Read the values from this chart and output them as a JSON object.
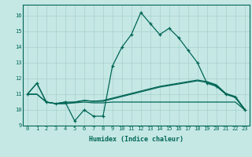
{
  "xlabel": "Humidex (Indice chaleur)",
  "x_ticks": [
    0,
    1,
    2,
    3,
    4,
    5,
    6,
    7,
    8,
    9,
    10,
    11,
    12,
    13,
    14,
    15,
    16,
    17,
    18,
    19,
    20,
    21,
    22,
    23
  ],
  "xlim": [
    -0.5,
    23.5
  ],
  "ylim": [
    9,
    16.7
  ],
  "y_ticks": [
    9,
    10,
    11,
    12,
    13,
    14,
    15,
    16
  ],
  "bg_color": "#c5e8e5",
  "grid_color": "#a8d0cc",
  "line_color": "#006655",
  "line1_x": [
    0,
    1,
    2,
    3,
    4,
    5,
    6,
    7,
    8,
    9,
    10,
    11,
    12,
    13,
    14,
    15,
    16,
    17,
    18,
    19,
    20,
    21,
    22,
    23
  ],
  "line1_y": [
    11.0,
    11.7,
    10.5,
    10.4,
    10.5,
    9.3,
    10.0,
    9.6,
    9.6,
    12.8,
    14.0,
    14.8,
    16.2,
    15.5,
    14.8,
    15.2,
    14.6,
    13.8,
    13.0,
    11.7,
    11.5,
    11.0,
    10.8,
    10.0
  ],
  "line2_y": [
    11.0,
    11.7,
    10.5,
    10.4,
    10.5,
    10.5,
    10.6,
    10.55,
    10.55,
    10.7,
    10.85,
    11.0,
    11.15,
    11.3,
    11.45,
    11.55,
    11.65,
    11.75,
    11.85,
    11.75,
    11.55,
    11.0,
    10.8,
    10.0
  ],
  "line3_y": [
    11.0,
    11.0,
    10.5,
    10.4,
    10.4,
    10.5,
    10.6,
    10.55,
    10.6,
    10.75,
    10.9,
    11.05,
    11.2,
    11.35,
    11.5,
    11.6,
    11.7,
    11.8,
    11.9,
    11.8,
    11.6,
    11.05,
    10.85,
    10.05
  ],
  "line4_y": [
    11.0,
    11.0,
    10.5,
    10.4,
    10.4,
    10.45,
    10.5,
    10.45,
    10.45,
    10.5,
    10.5,
    10.5,
    10.5,
    10.5,
    10.5,
    10.5,
    10.5,
    10.5,
    10.5,
    10.5,
    10.5,
    10.5,
    10.5,
    10.0
  ]
}
